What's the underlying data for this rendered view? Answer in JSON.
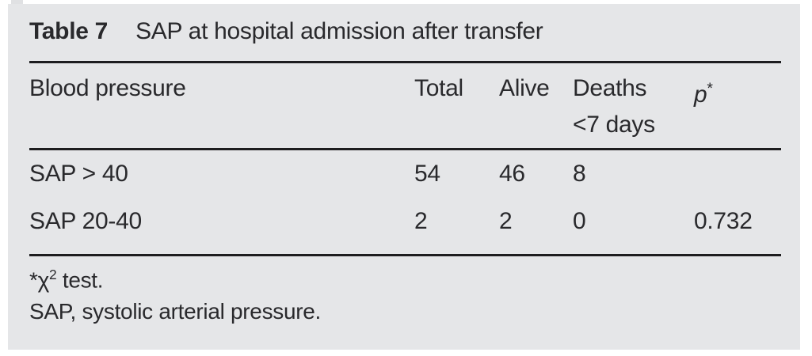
{
  "table": {
    "label": "Table 7",
    "caption": "SAP at hospital admission after transfer",
    "header": {
      "blood_pressure": "Blood pressure",
      "total": "Total",
      "alive": "Alive",
      "deaths_line1": "Deaths",
      "deaths_line2": "<7 days",
      "p_symbol": "p",
      "p_star": "*"
    },
    "rows": [
      {
        "label": "SAP > 40",
        "total": "54",
        "alive": "46",
        "deaths": "8",
        "p": ""
      },
      {
        "label": "SAP 20-40",
        "total": "2",
        "alive": "2",
        "deaths": "0",
        "p": "0.732"
      }
    ],
    "footnotes": {
      "note1_star": "*",
      "note1_chi": "χ",
      "note1_sup": "2",
      "note1_rest": " test.",
      "note2": "SAP, systolic arterial pressure."
    }
  },
  "colors": {
    "panel_bg": "#e5e6e8",
    "text": "#29292c",
    "rule": "#1d1d1f"
  },
  "chart_data": {
    "type": "table",
    "title": "Table 7 SAP at hospital admission after transfer",
    "columns": [
      "Blood pressure",
      "Total",
      "Alive",
      "Deaths <7 days",
      "p*"
    ],
    "rows": [
      [
        "SAP > 40",
        54,
        46,
        8,
        null
      ],
      [
        "SAP 20-40",
        2,
        2,
        0,
        0.732
      ]
    ],
    "footnotes": [
      "*χ2 test.",
      "SAP, systolic arterial pressure."
    ]
  }
}
